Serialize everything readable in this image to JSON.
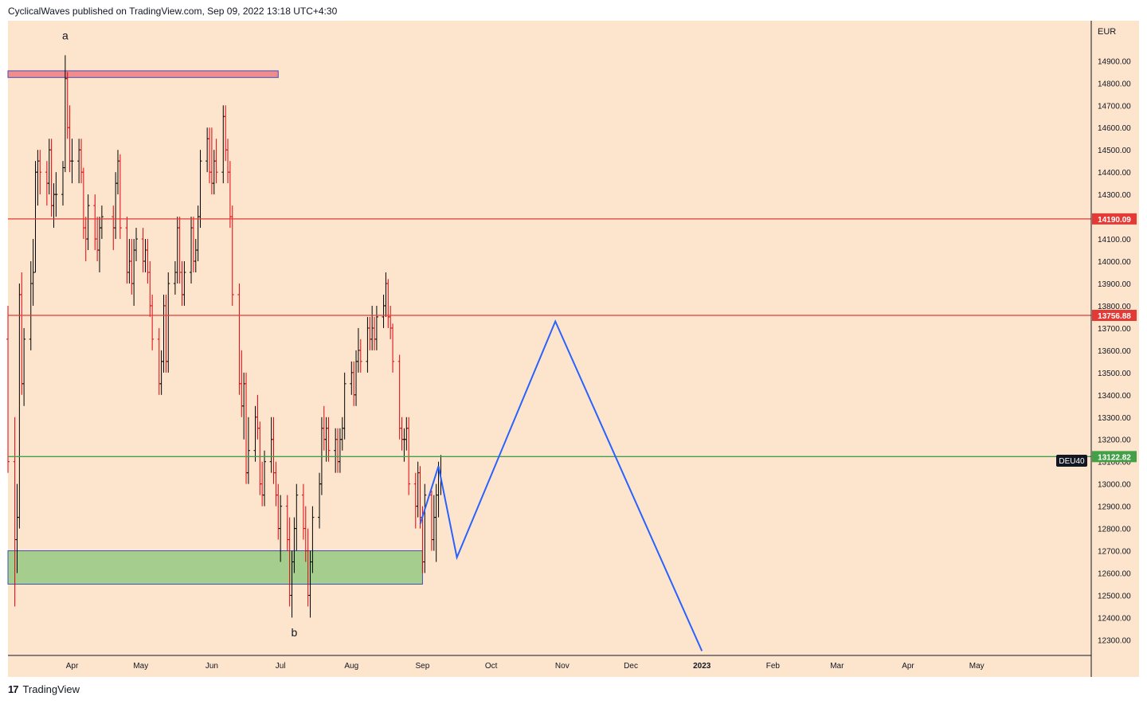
{
  "header": {
    "published_text": "CyclicalWaves published on TradingView.com, Sep 09, 2022 13:18 UTC+4:30"
  },
  "footer": {
    "logo_mark": "17",
    "brand": "TradingView"
  },
  "colors": {
    "background": "#fce5cc",
    "candle_up": "#000000",
    "candle_down": "#e0000c",
    "resistance_line": "#e53935",
    "current_line": "#43a047",
    "projection": "#2962ff",
    "supply_zone": "#f28b8b",
    "demand_zone": "#a5cd8d"
  },
  "chart_data": {
    "type": "candlestick",
    "symbol_label": "DEU40",
    "currency": "EUR",
    "ylim": [
      12230,
      15080
    ],
    "y_ticks": [
      "12300.00",
      "12400.00",
      "12500.00",
      "12600.00",
      "12700.00",
      "12800.00",
      "12900.00",
      "13000.00",
      "13100.00",
      "13200.00",
      "13300.00",
      "13400.00",
      "13500.00",
      "13600.00",
      "13700.00",
      "13800.00",
      "13900.00",
      "14000.00",
      "14100.00",
      "14200.00",
      "14300.00",
      "14400.00",
      "14500.00",
      "14600.00",
      "14700.00",
      "14800.00",
      "14900.00"
    ],
    "x_labels": [
      "Apr",
      "May",
      "Jun",
      "Jul",
      "Aug",
      "Sep",
      "Oct",
      "Nov",
      "Dec",
      "2023",
      "Feb",
      "Mar",
      "Apr",
      "May"
    ],
    "x_label_dates": [
      "2022-04-01",
      "2022-05-01",
      "2022-06-01",
      "2022-07-01",
      "2022-08-01",
      "2022-09-01",
      "2022-10-01",
      "2022-11-01",
      "2022-12-01",
      "2023-01-01",
      "2023-02-01",
      "2023-03-01",
      "2023-04-01",
      "2023-05-01"
    ],
    "x_range": [
      "2022-03-04",
      "2023-06-20"
    ],
    "levels": [
      {
        "value": 14190.09,
        "label": "14190.09",
        "color": "#e53935"
      },
      {
        "value": 13756.88,
        "label": "13756.88",
        "color": "#e53935"
      },
      {
        "value": 13122.82,
        "label": "13122.82",
        "color": "#43a047"
      }
    ],
    "zones": [
      {
        "kind": "supply",
        "from": "2022-03-04",
        "to": "2022-06-30",
        "low": 14825,
        "high": 14855
      },
      {
        "kind": "demand",
        "from": "2022-03-04",
        "to": "2022-09-01",
        "low": 12550,
        "high": 12700
      }
    ],
    "wave_labels": [
      {
        "text": "a",
        "date": "2022-03-29",
        "value": 15010
      },
      {
        "text": "b",
        "date": "2022-07-07",
        "value": 12330
      }
    ],
    "projection_path": [
      {
        "date": "2022-08-31",
        "value": 12820
      },
      {
        "date": "2022-09-08",
        "value": 13080
      },
      {
        "date": "2022-09-16",
        "value": 12670
      },
      {
        "date": "2022-10-29",
        "value": 13730
      },
      {
        "date": "2023-01-01",
        "value": 12250
      }
    ],
    "candles": [
      {
        "d": "2022-03-04",
        "o": 13650,
        "h": 13800,
        "l": 13050,
        "c": 13100
      },
      {
        "d": "2022-03-07",
        "o": 13100,
        "h": 13300,
        "l": 12450,
        "c": 12750
      },
      {
        "d": "2022-03-08",
        "o": 12750,
        "h": 13000,
        "l": 12600,
        "c": 12850
      },
      {
        "d": "2022-03-09",
        "o": 12850,
        "h": 13900,
        "l": 12800,
        "c": 13850
      },
      {
        "d": "2022-03-10",
        "o": 13850,
        "h": 13950,
        "l": 13400,
        "c": 13450
      },
      {
        "d": "2022-03-11",
        "o": 13450,
        "h": 13700,
        "l": 13350,
        "c": 13650
      },
      {
        "d": "2022-03-14",
        "o": 13650,
        "h": 14000,
        "l": 13600,
        "c": 13900
      },
      {
        "d": "2022-03-15",
        "o": 13900,
        "h": 14100,
        "l": 13800,
        "c": 13950
      },
      {
        "d": "2022-03-16",
        "o": 13950,
        "h": 14450,
        "l": 13950,
        "c": 14400
      },
      {
        "d": "2022-03-17",
        "o": 14400,
        "h": 14500,
        "l": 14250,
        "c": 14450
      },
      {
        "d": "2022-03-18",
        "o": 14450,
        "h": 14500,
        "l": 14300,
        "c": 14400
      },
      {
        "d": "2022-03-21",
        "o": 14400,
        "h": 14450,
        "l": 14250,
        "c": 14350
      },
      {
        "d": "2022-03-22",
        "o": 14350,
        "h": 14550,
        "l": 14300,
        "c": 14500
      },
      {
        "d": "2022-03-23",
        "o": 14500,
        "h": 14550,
        "l": 14200,
        "c": 14250
      },
      {
        "d": "2022-03-24",
        "o": 14250,
        "h": 14350,
        "l": 14150,
        "c": 14300
      },
      {
        "d": "2022-03-25",
        "o": 14300,
        "h": 14400,
        "l": 14200,
        "c": 14300
      },
      {
        "d": "2022-03-28",
        "o": 14300,
        "h": 14450,
        "l": 14250,
        "c": 14420
      },
      {
        "d": "2022-03-29",
        "o": 14420,
        "h": 14925,
        "l": 14400,
        "c": 14820
      },
      {
        "d": "2022-03-30",
        "o": 14820,
        "h": 14850,
        "l": 14550,
        "c": 14600
      },
      {
        "d": "2022-03-31",
        "o": 14600,
        "h": 14700,
        "l": 14400,
        "c": 14450
      },
      {
        "d": "2022-04-01",
        "o": 14450,
        "h": 14550,
        "l": 14350,
        "c": 14450
      },
      {
        "d": "2022-04-04",
        "o": 14450,
        "h": 14550,
        "l": 14350,
        "c": 14500
      },
      {
        "d": "2022-04-05",
        "o": 14500,
        "h": 14550,
        "l": 14350,
        "c": 14400
      },
      {
        "d": "2022-04-06",
        "o": 14400,
        "h": 14420,
        "l": 14100,
        "c": 14150
      },
      {
        "d": "2022-04-07",
        "o": 14150,
        "h": 14200,
        "l": 14000,
        "c": 14100
      },
      {
        "d": "2022-04-08",
        "o": 14100,
        "h": 14300,
        "l": 14050,
        "c": 14250
      },
      {
        "d": "2022-04-11",
        "o": 14250,
        "h": 14300,
        "l": 14050,
        "c": 14100
      },
      {
        "d": "2022-04-12",
        "o": 14100,
        "h": 14200,
        "l": 14000,
        "c": 14050
      },
      {
        "d": "2022-04-13",
        "o": 14050,
        "h": 14200,
        "l": 13950,
        "c": 14150
      },
      {
        "d": "2022-04-14",
        "o": 14150,
        "h": 14250,
        "l": 14100,
        "c": 14200
      },
      {
        "d": "2022-04-19",
        "o": 14200,
        "h": 14250,
        "l": 14050,
        "c": 14150
      },
      {
        "d": "2022-04-20",
        "o": 14150,
        "h": 14400,
        "l": 14100,
        "c": 14350
      },
      {
        "d": "2022-04-21",
        "o": 14350,
        "h": 14500,
        "l": 14300,
        "c": 14450
      },
      {
        "d": "2022-04-22",
        "o": 14450,
        "h": 14480,
        "l": 14100,
        "c": 14150
      },
      {
        "d": "2022-04-25",
        "o": 14150,
        "h": 14200,
        "l": 13900,
        "c": 13950
      },
      {
        "d": "2022-04-26",
        "o": 13950,
        "h": 14100,
        "l": 13900,
        "c": 14000
      },
      {
        "d": "2022-04-27",
        "o": 14000,
        "h": 14100,
        "l": 13850,
        "c": 13900
      },
      {
        "d": "2022-04-28",
        "o": 13900,
        "h": 14100,
        "l": 13800,
        "c": 14050
      },
      {
        "d": "2022-04-29",
        "o": 14050,
        "h": 14150,
        "l": 14000,
        "c": 14100
      },
      {
        "d": "2022-05-02",
        "o": 14100,
        "h": 14150,
        "l": 13950,
        "c": 14000
      },
      {
        "d": "2022-05-03",
        "o": 14000,
        "h": 14100,
        "l": 13950,
        "c": 14050
      },
      {
        "d": "2022-05-04",
        "o": 14050,
        "h": 14100,
        "l": 13900,
        "c": 13950
      },
      {
        "d": "2022-05-05",
        "o": 13950,
        "h": 14000,
        "l": 13750,
        "c": 13800
      },
      {
        "d": "2022-05-06",
        "o": 13800,
        "h": 13850,
        "l": 13600,
        "c": 13650
      },
      {
        "d": "2022-05-09",
        "o": 13650,
        "h": 13700,
        "l": 13400,
        "c": 13450
      },
      {
        "d": "2022-05-10",
        "o": 13450,
        "h": 13600,
        "l": 13400,
        "c": 13550
      },
      {
        "d": "2022-05-11",
        "o": 13550,
        "h": 13850,
        "l": 13500,
        "c": 13800
      },
      {
        "d": "2022-05-12",
        "o": 13800,
        "h": 13850,
        "l": 13500,
        "c": 13550
      },
      {
        "d": "2022-05-13",
        "o": 13550,
        "h": 13950,
        "l": 13500,
        "c": 13900
      },
      {
        "d": "2022-05-16",
        "o": 13900,
        "h": 14000,
        "l": 13850,
        "c": 13950
      },
      {
        "d": "2022-05-17",
        "o": 13950,
        "h": 14200,
        "l": 13900,
        "c": 14150
      },
      {
        "d": "2022-05-18",
        "o": 14150,
        "h": 14200,
        "l": 13900,
        "c": 13950
      },
      {
        "d": "2022-05-19",
        "o": 13950,
        "h": 14000,
        "l": 13800,
        "c": 13850
      },
      {
        "d": "2022-05-20",
        "o": 13850,
        "h": 14000,
        "l": 13800,
        "c": 13950
      },
      {
        "d": "2022-05-23",
        "o": 13950,
        "h": 14200,
        "l": 13900,
        "c": 14150
      },
      {
        "d": "2022-05-24",
        "o": 14150,
        "h": 14200,
        "l": 13950,
        "c": 14000
      },
      {
        "d": "2022-05-25",
        "o": 14000,
        "h": 14100,
        "l": 13950,
        "c": 14050
      },
      {
        "d": "2022-05-26",
        "o": 14050,
        "h": 14250,
        "l": 14000,
        "c": 14200
      },
      {
        "d": "2022-05-27",
        "o": 14200,
        "h": 14500,
        "l": 14150,
        "c": 14450
      },
      {
        "d": "2022-05-30",
        "o": 14450,
        "h": 14600,
        "l": 14400,
        "c": 14550
      },
      {
        "d": "2022-05-31",
        "o": 14550,
        "h": 14600,
        "l": 14350,
        "c": 14400
      },
      {
        "d": "2022-06-01",
        "o": 14400,
        "h": 14600,
        "l": 14300,
        "c": 14350
      },
      {
        "d": "2022-06-02",
        "o": 14350,
        "h": 14500,
        "l": 14300,
        "c": 14450
      },
      {
        "d": "2022-06-03",
        "o": 14450,
        "h": 14550,
        "l": 14350,
        "c": 14400
      },
      {
        "d": "2022-06-06",
        "o": 14400,
        "h": 14700,
        "l": 14350,
        "c": 14650
      },
      {
        "d": "2022-06-07",
        "o": 14650,
        "h": 14700,
        "l": 14450,
        "c": 14500
      },
      {
        "d": "2022-06-08",
        "o": 14500,
        "h": 14550,
        "l": 14350,
        "c": 14400
      },
      {
        "d": "2022-06-09",
        "o": 14400,
        "h": 14450,
        "l": 14150,
        "c": 14200
      },
      {
        "d": "2022-06-10",
        "o": 14200,
        "h": 14250,
        "l": 13800,
        "c": 13850
      },
      {
        "d": "2022-06-13",
        "o": 13850,
        "h": 13900,
        "l": 13400,
        "c": 13450
      },
      {
        "d": "2022-06-14",
        "o": 13450,
        "h": 13600,
        "l": 13300,
        "c": 13350
      },
      {
        "d": "2022-06-15",
        "o": 13350,
        "h": 13500,
        "l": 13200,
        "c": 13450
      },
      {
        "d": "2022-06-16",
        "o": 13450,
        "h": 13500,
        "l": 13000,
        "c": 13050
      },
      {
        "d": "2022-06-17",
        "o": 13050,
        "h": 13300,
        "l": 13000,
        "c": 13150
      },
      {
        "d": "2022-06-20",
        "o": 13150,
        "h": 13350,
        "l": 13100,
        "c": 13300
      },
      {
        "d": "2022-06-21",
        "o": 13300,
        "h": 13400,
        "l": 13200,
        "c": 13250
      },
      {
        "d": "2022-06-22",
        "o": 13250,
        "h": 13280,
        "l": 12950,
        "c": 13000
      },
      {
        "d": "2022-06-23",
        "o": 13000,
        "h": 13100,
        "l": 12900,
        "c": 12950
      },
      {
        "d": "2022-06-24",
        "o": 12950,
        "h": 13150,
        "l": 12900,
        "c": 13100
      },
      {
        "d": "2022-06-27",
        "o": 13100,
        "h": 13300,
        "l": 13050,
        "c": 13200
      },
      {
        "d": "2022-06-28",
        "o": 13200,
        "h": 13300,
        "l": 13000,
        "c": 13050
      },
      {
        "d": "2022-06-29",
        "o": 13050,
        "h": 13100,
        "l": 12900,
        "c": 12950
      },
      {
        "d": "2022-06-30",
        "o": 12950,
        "h": 13000,
        "l": 12750,
        "c": 12800
      },
      {
        "d": "2022-07-01",
        "o": 12800,
        "h": 12950,
        "l": 12650,
        "c": 12900
      },
      {
        "d": "2022-07-04",
        "o": 12900,
        "h": 12950,
        "l": 12700,
        "c": 12750
      },
      {
        "d": "2022-07-05",
        "o": 12750,
        "h": 12850,
        "l": 12450,
        "c": 12500
      },
      {
        "d": "2022-07-06",
        "o": 12500,
        "h": 12700,
        "l": 12400,
        "c": 12650
      },
      {
        "d": "2022-07-07",
        "o": 12650,
        "h": 12850,
        "l": 12600,
        "c": 12800
      },
      {
        "d": "2022-07-08",
        "o": 12800,
        "h": 13000,
        "l": 12700,
        "c": 12950
      },
      {
        "d": "2022-07-11",
        "o": 12950,
        "h": 13000,
        "l": 12750,
        "c": 12800
      },
      {
        "d": "2022-07-12",
        "o": 12800,
        "h": 12900,
        "l": 12650,
        "c": 12700
      },
      {
        "d": "2022-07-13",
        "o": 12700,
        "h": 12800,
        "l": 12450,
        "c": 12500
      },
      {
        "d": "2022-07-14",
        "o": 12500,
        "h": 12700,
        "l": 12400,
        "c": 12650
      },
      {
        "d": "2022-07-15",
        "o": 12650,
        "h": 12900,
        "l": 12600,
        "c": 12850
      },
      {
        "d": "2022-07-18",
        "o": 12850,
        "h": 13050,
        "l": 12800,
        "c": 13000
      },
      {
        "d": "2022-07-19",
        "o": 13000,
        "h": 13300,
        "l": 12950,
        "c": 13250
      },
      {
        "d": "2022-07-20",
        "o": 13250,
        "h": 13350,
        "l": 13150,
        "c": 13200
      },
      {
        "d": "2022-07-21",
        "o": 13200,
        "h": 13300,
        "l": 13100,
        "c": 13250
      },
      {
        "d": "2022-07-22",
        "o": 13250,
        "h": 13300,
        "l": 13100,
        "c": 13150
      },
      {
        "d": "2022-07-25",
        "o": 13150,
        "h": 13250,
        "l": 13050,
        "c": 13200
      },
      {
        "d": "2022-07-26",
        "o": 13200,
        "h": 13250,
        "l": 13050,
        "c": 13100
      },
      {
        "d": "2022-07-27",
        "o": 13100,
        "h": 13250,
        "l": 13050,
        "c": 13200
      },
      {
        "d": "2022-07-28",
        "o": 13200,
        "h": 13300,
        "l": 13150,
        "c": 13250
      },
      {
        "d": "2022-07-29",
        "o": 13250,
        "h": 13500,
        "l": 13200,
        "c": 13450
      },
      {
        "d": "2022-08-01",
        "o": 13450,
        "h": 13550,
        "l": 13400,
        "c": 13500
      },
      {
        "d": "2022-08-02",
        "o": 13500,
        "h": 13550,
        "l": 13350,
        "c": 13400
      },
      {
        "d": "2022-08-03",
        "o": 13400,
        "h": 13600,
        "l": 13350,
        "c": 13550
      },
      {
        "d": "2022-08-04",
        "o": 13550,
        "h": 13700,
        "l": 13500,
        "c": 13600
      },
      {
        "d": "2022-08-05",
        "o": 13600,
        "h": 13650,
        "l": 13500,
        "c": 13550
      },
      {
        "d": "2022-08-08",
        "o": 13550,
        "h": 13750,
        "l": 13500,
        "c": 13700
      },
      {
        "d": "2022-08-09",
        "o": 13700,
        "h": 13750,
        "l": 13600,
        "c": 13650
      },
      {
        "d": "2022-08-10",
        "o": 13650,
        "h": 13800,
        "l": 13600,
        "c": 13700
      },
      {
        "d": "2022-08-11",
        "o": 13700,
        "h": 13750,
        "l": 13600,
        "c": 13650
      },
      {
        "d": "2022-08-12",
        "o": 13650,
        "h": 13800,
        "l": 13600,
        "c": 13750
      },
      {
        "d": "2022-08-15",
        "o": 13750,
        "h": 13850,
        "l": 13700,
        "c": 13800
      },
      {
        "d": "2022-08-16",
        "o": 13800,
        "h": 13950,
        "l": 13750,
        "c": 13900
      },
      {
        "d": "2022-08-17",
        "o": 13900,
        "h": 13920,
        "l": 13700,
        "c": 13750
      },
      {
        "d": "2022-08-18",
        "o": 13750,
        "h": 13800,
        "l": 13650,
        "c": 13700
      },
      {
        "d": "2022-08-19",
        "o": 13700,
        "h": 13720,
        "l": 13500,
        "c": 13550
      },
      {
        "d": "2022-08-22",
        "o": 13550,
        "h": 13580,
        "l": 13200,
        "c": 13250
      },
      {
        "d": "2022-08-23",
        "o": 13250,
        "h": 13300,
        "l": 13150,
        "c": 13200
      },
      {
        "d": "2022-08-24",
        "o": 13200,
        "h": 13250,
        "l": 13100,
        "c": 13200
      },
      {
        "d": "2022-08-25",
        "o": 13200,
        "h": 13300,
        "l": 13150,
        "c": 13250
      },
      {
        "d": "2022-08-26",
        "o": 13250,
        "h": 13300,
        "l": 12950,
        "c": 13000
      },
      {
        "d": "2022-08-29",
        "o": 13000,
        "h": 13050,
        "l": 12800,
        "c": 12900
      },
      {
        "d": "2022-08-30",
        "o": 12900,
        "h": 13100,
        "l": 12850,
        "c": 13050
      },
      {
        "d": "2022-08-31",
        "o": 13050,
        "h": 13080,
        "l": 12800,
        "c": 12850
      },
      {
        "d": "2022-09-01",
        "o": 12850,
        "h": 12900,
        "l": 12600,
        "c": 12650
      },
      {
        "d": "2022-09-02",
        "o": 12650,
        "h": 13000,
        "l": 12600,
        "c": 12950
      },
      {
        "d": "2022-09-05",
        "o": 12950,
        "h": 12970,
        "l": 12700,
        "c": 12750
      },
      {
        "d": "2022-09-06",
        "o": 12750,
        "h": 12950,
        "l": 12700,
        "c": 12850
      },
      {
        "d": "2022-09-07",
        "o": 12850,
        "h": 13000,
        "l": 12650,
        "c": 12950
      },
      {
        "d": "2022-09-08",
        "o": 12950,
        "h": 13100,
        "l": 12850,
        "c": 13050
      },
      {
        "d": "2022-09-09",
        "o": 13050,
        "h": 13130,
        "l": 12950,
        "c": 13122.82
      }
    ]
  }
}
